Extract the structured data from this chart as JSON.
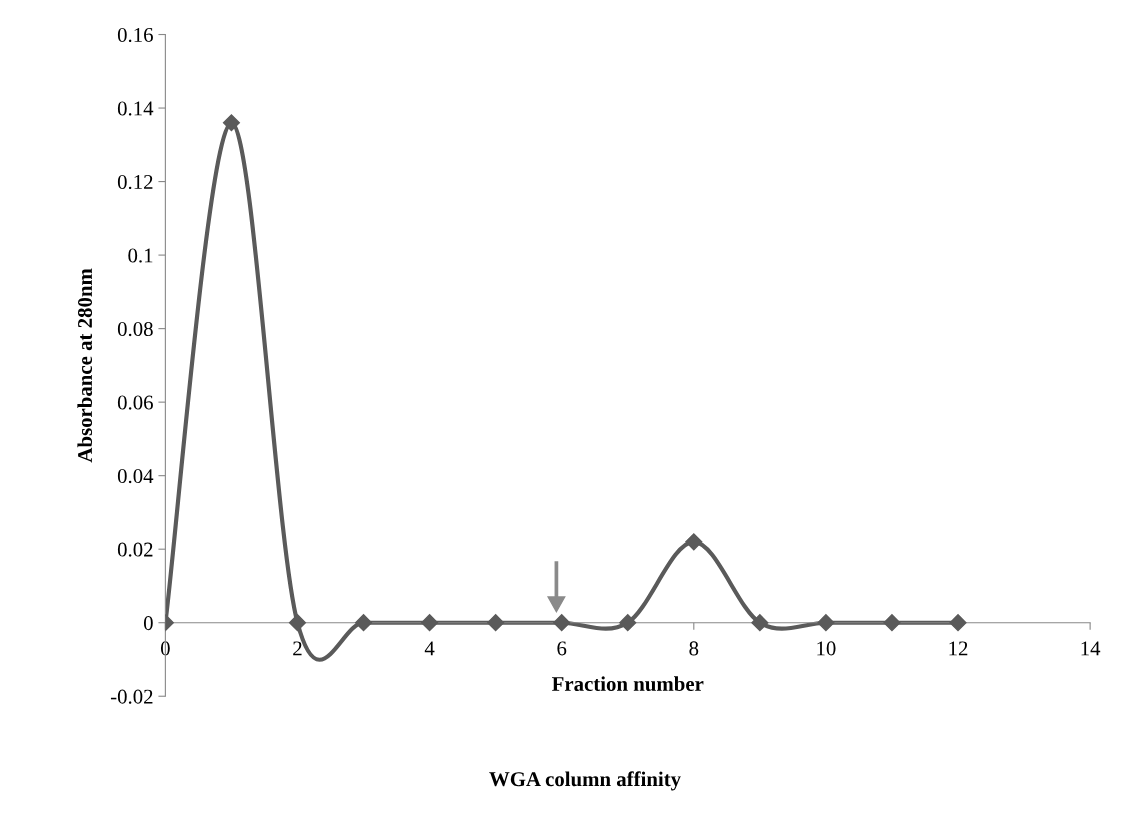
{
  "chart_data": {
    "type": "line",
    "x": [
      0,
      1,
      2,
      3,
      4,
      5,
      6,
      7,
      8,
      9,
      10,
      11,
      12
    ],
    "series": [
      {
        "color": "#5a5a5a",
        "values": [
          0,
          0.136,
          0,
          0,
          0,
          0,
          0,
          0,
          0.022,
          0,
          0,
          0,
          0
        ]
      }
    ],
    "xlim": [
      0,
      14
    ],
    "xticks": [
      0,
      2,
      4,
      6,
      8,
      10,
      12,
      14
    ],
    "ylim": [
      -0.02,
      0.16
    ],
    "yticks": [
      -0.02,
      0,
      0.02,
      0.04,
      0.06,
      0.08,
      0.1,
      0.12,
      0.14,
      0.16
    ],
    "xlabel": "Fraction number",
    "ylabel": "Absorbance at 280nm",
    "annotations": [
      "WGA column affinity"
    ],
    "marker": "diamond",
    "grid": false,
    "legend": false
  }
}
